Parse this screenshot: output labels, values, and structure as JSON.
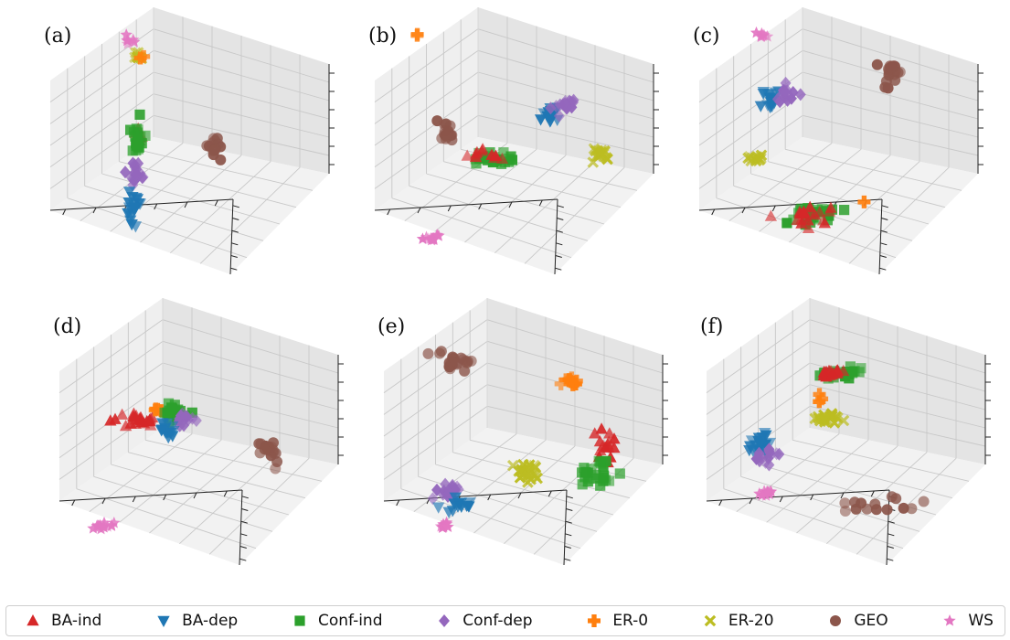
{
  "chart_data": [
    {
      "panel_label": "(a)",
      "type": "scatter",
      "dims": 3,
      "clusters": [
        {
          "series": "BA-ind",
          "center": [
            0.36,
            0.44
          ],
          "spread": [
            0.02,
            0.06
          ],
          "n": 6
        },
        {
          "series": "Conf-ind",
          "center": [
            0.36,
            0.46
          ],
          "spread": [
            0.02,
            0.09
          ],
          "n": 22
        },
        {
          "series": "Conf-dep",
          "center": [
            0.35,
            0.65
          ],
          "spread": [
            0.02,
            0.06
          ],
          "n": 20
        },
        {
          "series": "BA-dep",
          "center": [
            0.34,
            0.82
          ],
          "spread": [
            0.02,
            0.07
          ],
          "n": 18
        },
        {
          "series": "GEO",
          "center": [
            0.63,
            0.52
          ],
          "spread": [
            0.03,
            0.06
          ],
          "n": 14
        },
        {
          "series": "WS",
          "center": [
            0.33,
            -0.05
          ],
          "spread": [
            0.02,
            0.02
          ],
          "n": 6
        },
        {
          "series": "ER-20",
          "center": [
            0.36,
            0.03
          ],
          "spread": [
            0.015,
            0.015
          ],
          "n": 10
        },
        {
          "series": "ER-0",
          "center": [
            0.37,
            0.03
          ],
          "spread": [
            0.01,
            0.01
          ],
          "n": 2
        }
      ]
    },
    {
      "panel_label": "(b)",
      "type": "scatter",
      "dims": 3,
      "clusters": [
        {
          "series": "ER-0",
          "center": [
            0.2,
            -0.08
          ],
          "spread": [
            0.01,
            0.01
          ],
          "n": 2
        },
        {
          "series": "BA-dep",
          "center": [
            0.67,
            0.33
          ],
          "spread": [
            0.03,
            0.04
          ],
          "n": 18
        },
        {
          "series": "Conf-dep",
          "center": [
            0.72,
            0.3
          ],
          "spread": [
            0.03,
            0.04
          ],
          "n": 18
        },
        {
          "series": "GEO",
          "center": [
            0.3,
            0.43
          ],
          "spread": [
            0.03,
            0.04
          ],
          "n": 16
        },
        {
          "series": "Conf-ind",
          "center": [
            0.47,
            0.57
          ],
          "spread": [
            0.08,
            0.03
          ],
          "n": 26
        },
        {
          "series": "BA-ind",
          "center": [
            0.43,
            0.55
          ],
          "spread": [
            0.06,
            0.03
          ],
          "n": 10
        },
        {
          "series": "ER-20",
          "center": [
            0.85,
            0.54
          ],
          "spread": [
            0.03,
            0.03
          ],
          "n": 16
        },
        {
          "series": "WS",
          "center": [
            0.24,
            0.98
          ],
          "spread": [
            0.04,
            0.015
          ],
          "n": 14
        }
      ]
    },
    {
      "panel_label": "(c)",
      "type": "scatter",
      "dims": 3,
      "clusters": [
        {
          "series": "WS",
          "center": [
            0.27,
            -0.08
          ],
          "spread": [
            0.02,
            0.02
          ],
          "n": 8
        },
        {
          "series": "GEO",
          "center": [
            0.73,
            0.11
          ],
          "spread": [
            0.04,
            0.07
          ],
          "n": 18
        },
        {
          "series": "BA-dep",
          "center": [
            0.3,
            0.25
          ],
          "spread": [
            0.03,
            0.05
          ],
          "n": 18
        },
        {
          "series": "Conf-dep",
          "center": [
            0.36,
            0.22
          ],
          "spread": [
            0.03,
            0.05
          ],
          "n": 16
        },
        {
          "series": "ER-20",
          "center": [
            0.25,
            0.56
          ],
          "spread": [
            0.03,
            0.015
          ],
          "n": 12
        },
        {
          "series": "Conf-ind",
          "center": [
            0.45,
            0.85
          ],
          "spread": [
            0.09,
            0.05
          ],
          "n": 22
        },
        {
          "series": "BA-ind",
          "center": [
            0.43,
            0.86
          ],
          "spread": [
            0.07,
            0.05
          ],
          "n": 20
        },
        {
          "series": "ER-0",
          "center": [
            0.64,
            0.79
          ],
          "spread": [
            0.008,
            0.008
          ],
          "n": 1
        }
      ]
    },
    {
      "panel_label": "(d)",
      "type": "scatter",
      "dims": 3,
      "clusters": [
        {
          "series": "BA-ind",
          "center": [
            0.33,
            0.42
          ],
          "spread": [
            0.06,
            0.04
          ],
          "n": 24
        },
        {
          "series": "ER-0",
          "center": [
            0.39,
            0.36
          ],
          "spread": [
            0.02,
            0.02
          ],
          "n": 4
        },
        {
          "series": "Conf-ind",
          "center": [
            0.46,
            0.37
          ],
          "spread": [
            0.04,
            0.04
          ],
          "n": 18
        },
        {
          "series": "Conf-dep",
          "center": [
            0.49,
            0.41
          ],
          "spread": [
            0.03,
            0.04
          ],
          "n": 14
        },
        {
          "series": "BA-dep",
          "center": [
            0.43,
            0.46
          ],
          "spread": [
            0.04,
            0.04
          ],
          "n": 14
        },
        {
          "series": "GEO",
          "center": [
            0.78,
            0.58
          ],
          "spread": [
            0.03,
            0.06
          ],
          "n": 16
        },
        {
          "series": "WS",
          "center": [
            0.2,
            0.97
          ],
          "spread": [
            0.04,
            0.02
          ],
          "n": 14
        }
      ]
    },
    {
      "panel_label": "(e)",
      "type": "scatter",
      "dims": 3,
      "clusters": [
        {
          "series": "GEO",
          "center": [
            0.3,
            0.1
          ],
          "spread": [
            0.07,
            0.04
          ],
          "n": 22
        },
        {
          "series": "ER-0",
          "center": [
            0.7,
            0.21
          ],
          "spread": [
            0.025,
            0.025
          ],
          "n": 10
        },
        {
          "series": "BA-ind",
          "center": [
            0.84,
            0.55
          ],
          "spread": [
            0.04,
            0.1
          ],
          "n": 16
        },
        {
          "series": "Conf-ind",
          "center": [
            0.8,
            0.69
          ],
          "spread": [
            0.06,
            0.08
          ],
          "n": 24
        },
        {
          "series": "ER-20",
          "center": [
            0.55,
            0.68
          ],
          "spread": [
            0.04,
            0.05
          ],
          "n": 22
        },
        {
          "series": "Conf-dep",
          "center": [
            0.27,
            0.79
          ],
          "spread": [
            0.04,
            0.05
          ],
          "n": 18
        },
        {
          "series": "BA-dep",
          "center": [
            0.31,
            0.84
          ],
          "spread": [
            0.04,
            0.04
          ],
          "n": 14
        },
        {
          "series": "WS",
          "center": [
            0.26,
            0.96
          ],
          "spread": [
            0.02,
            0.02
          ],
          "n": 10
        }
      ]
    },
    {
      "panel_label": "(f)",
      "type": "scatter",
      "dims": 3,
      "clusters": [
        {
          "series": "Conf-ind",
          "center": [
            0.51,
            0.17
          ],
          "spread": [
            0.07,
            0.03
          ],
          "n": 20
        },
        {
          "series": "BA-ind",
          "center": [
            0.49,
            0.17
          ],
          "spread": [
            0.06,
            0.03
          ],
          "n": 16
        },
        {
          "series": "ER-0",
          "center": [
            0.45,
            0.3
          ],
          "spread": [
            0.015,
            0.015
          ],
          "n": 3
        },
        {
          "series": "ER-20",
          "center": [
            0.47,
            0.4
          ],
          "spread": [
            0.05,
            0.03
          ],
          "n": 18
        },
        {
          "series": "BA-dep",
          "center": [
            0.24,
            0.53
          ],
          "spread": [
            0.04,
            0.05
          ],
          "n": 20
        },
        {
          "series": "Conf-dep",
          "center": [
            0.26,
            0.6
          ],
          "spread": [
            0.04,
            0.04
          ],
          "n": 16
        },
        {
          "series": "WS",
          "center": [
            0.26,
            0.79
          ],
          "spread": [
            0.03,
            0.02
          ],
          "n": 12
        },
        {
          "series": "GEO",
          "center": [
            0.67,
            0.85
          ],
          "spread": [
            0.1,
            0.05
          ],
          "n": 14
        }
      ]
    }
  ],
  "legend": [
    {
      "label": "BA-ind",
      "marker": "triangle-up",
      "color": "#d62728"
    },
    {
      "label": "BA-dep",
      "marker": "triangle-down",
      "color": "#1f77b4"
    },
    {
      "label": "Conf-ind",
      "marker": "square",
      "color": "#2ca02c"
    },
    {
      "label": "Conf-dep",
      "marker": "diamond",
      "color": "#9467bd"
    },
    {
      "label": "ER-0",
      "marker": "plus",
      "color": "#ff7f0e"
    },
    {
      "label": "ER-20",
      "marker": "x",
      "color": "#bcbd22"
    },
    {
      "label": "GEO",
      "marker": "circle",
      "color": "#8c564b"
    },
    {
      "label": "WS",
      "marker": "star",
      "color": "#e377c2"
    }
  ]
}
